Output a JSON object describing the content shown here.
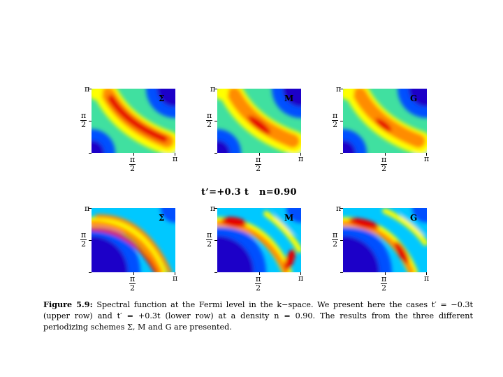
{
  "figure": {
    "middle_title": {
      "tprime": "t’=+0.3 t",
      "density": "n=0.90"
    },
    "axis_labels": {
      "pi": "π",
      "half_num": "π",
      "half_den": "2"
    },
    "panels": [
      {
        "row": "upper",
        "scheme": "Σ"
      },
      {
        "row": "upper",
        "scheme": "M"
      },
      {
        "row": "upper",
        "scheme": "G"
      },
      {
        "row": "lower",
        "scheme": "Σ"
      },
      {
        "row": "lower",
        "scheme": "M"
      },
      {
        "row": "lower",
        "scheme": "G"
      }
    ],
    "colormap": [
      "#1a00c8",
      "#0050ff",
      "#00c8ff",
      "#40e0a0",
      "#ffff00",
      "#ff8c00",
      "#e60000"
    ],
    "caption": {
      "label": "Figure 5.9:",
      "text": "Spectral function at the Fermi level in the k−space. We present here the cases t′ = −0.3t (upper row) and t′ = +0.3t (lower row) at a density n = 0.90. The results from the three different periodizing schemes Σ, M and G are presented."
    }
  }
}
